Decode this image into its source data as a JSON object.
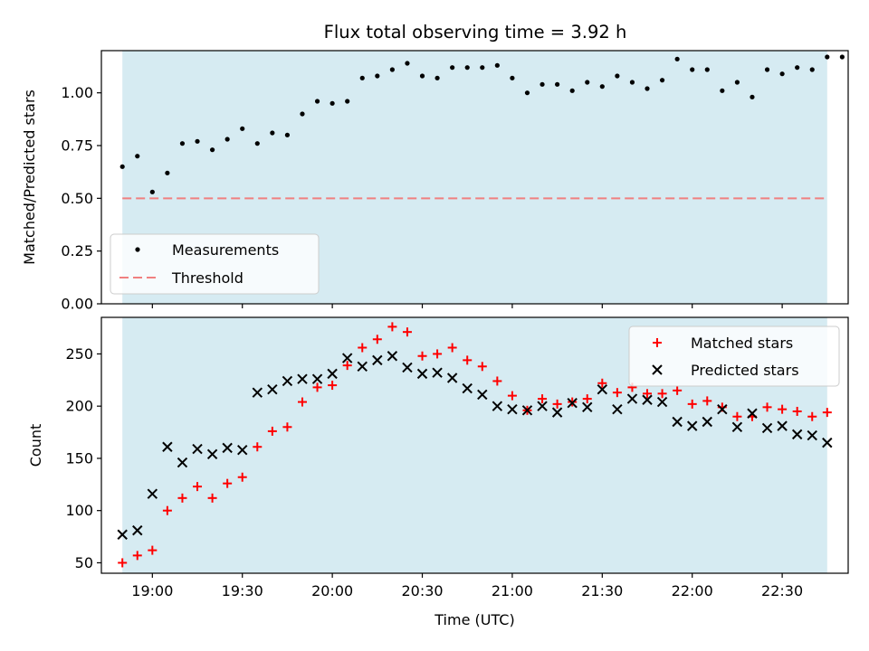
{
  "figure": {
    "title": "Flux total observing time = 3.92 h"
  },
  "colors": {
    "band": "#add8e6",
    "threshold": "#f08080",
    "matched": "#ff0000",
    "predicted": "#000000",
    "measurement": "#000000"
  },
  "chart_data": [
    {
      "type": "scatter",
      "ylabel": "Matched/Predicted stars",
      "xlabel": "",
      "xlim": [
        "18:43",
        "22:52"
      ],
      "ylim": [
        0,
        1.2
      ],
      "yticks": [
        0.0,
        0.25,
        0.5,
        0.75,
        1.0
      ],
      "ytick_labels": [
        "0.00",
        "0.25",
        "0.50",
        "0.75",
        "1.00"
      ],
      "xticks": [
        "19:00",
        "19:30",
        "20:00",
        "20:30",
        "21:00",
        "21:30",
        "22:00",
        "22:30"
      ],
      "show_xtick_labels": false,
      "shaded_interval": [
        "18:50",
        "22:45"
      ],
      "threshold": {
        "name": "Threshold",
        "value": 0.5,
        "x_range": [
          "18:50",
          "22:45"
        ]
      },
      "legend": {
        "placement": "lower-left",
        "entries": [
          "Measurements",
          "Threshold"
        ]
      },
      "series": [
        {
          "name": "Measurements",
          "x": [
            "18:50",
            "18:55",
            "19:00",
            "19:05",
            "19:10",
            "19:15",
            "19:20",
            "19:25",
            "19:30",
            "19:35",
            "19:40",
            "19:45",
            "19:50",
            "19:55",
            "20:00",
            "20:05",
            "20:10",
            "20:15",
            "20:20",
            "20:25",
            "20:30",
            "20:35",
            "20:40",
            "20:45",
            "20:50",
            "20:55",
            "21:00",
            "21:05",
            "21:10",
            "21:15",
            "21:20",
            "21:25",
            "21:30",
            "21:35",
            "21:40",
            "21:45",
            "21:50",
            "21:55",
            "22:00",
            "22:05",
            "22:10",
            "22:15",
            "22:20",
            "22:25",
            "22:30",
            "22:35",
            "22:40",
            "22:45",
            "22:50"
          ],
          "y": [
            0.65,
            0.7,
            0.53,
            0.62,
            0.76,
            0.77,
            0.73,
            0.78,
            0.83,
            0.76,
            0.81,
            0.8,
            0.9,
            0.96,
            0.95,
            0.96,
            1.07,
            1.08,
            1.11,
            1.14,
            1.08,
            1.07,
            1.12,
            1.12,
            1.12,
            1.13,
            1.07,
            1.0,
            1.04,
            1.04,
            1.01,
            1.05,
            1.03,
            1.08,
            1.05,
            1.02,
            1.06,
            1.16,
            1.11,
            1.11,
            1.01,
            1.05,
            0.98,
            1.11,
            1.09,
            1.12,
            1.11,
            1.17,
            1.17
          ]
        }
      ]
    },
    {
      "type": "scatter",
      "ylabel": "Count",
      "xlabel": "Time (UTC)",
      "xlim": [
        "18:43",
        "22:52"
      ],
      "ylim": [
        40,
        285
      ],
      "yticks": [
        50,
        100,
        150,
        200,
        250
      ],
      "ytick_labels": [
        "50",
        "100",
        "150",
        "200",
        "250"
      ],
      "xticks": [
        "19:00",
        "19:30",
        "20:00",
        "20:30",
        "21:00",
        "21:30",
        "22:00",
        "22:30"
      ],
      "show_xtick_labels": true,
      "shaded_interval": [
        "18:50",
        "22:45"
      ],
      "legend": {
        "placement": "top-right",
        "entries": [
          "Matched stars",
          "Predicted stars"
        ]
      },
      "series": [
        {
          "name": "Matched stars",
          "marker": "plus",
          "x": [
            "18:50",
            "18:55",
            "19:00",
            "19:05",
            "19:10",
            "19:15",
            "19:20",
            "19:25",
            "19:30",
            "19:35",
            "19:40",
            "19:45",
            "19:50",
            "19:55",
            "20:00",
            "20:05",
            "20:10",
            "20:15",
            "20:20",
            "20:25",
            "20:30",
            "20:35",
            "20:40",
            "20:45",
            "20:50",
            "20:55",
            "21:00",
            "21:05",
            "21:10",
            "21:15",
            "21:20",
            "21:25",
            "21:30",
            "21:35",
            "21:40",
            "21:45",
            "21:50",
            "21:55",
            "22:00",
            "22:05",
            "22:10",
            "22:15",
            "22:20",
            "22:25",
            "22:30",
            "22:35",
            "22:40",
            "22:45"
          ],
          "y": [
            50,
            57,
            62,
            100,
            112,
            123,
            112,
            126,
            132,
            161,
            176,
            180,
            204,
            218,
            220,
            239,
            256,
            264,
            276,
            271,
            248,
            250,
            256,
            244,
            238,
            224,
            210,
            196,
            207,
            202,
            204,
            207,
            222,
            213,
            218,
            212,
            212,
            215,
            202,
            205,
            199,
            190,
            190,
            199,
            197,
            195,
            190,
            194
          ]
        },
        {
          "name": "Predicted stars",
          "marker": "x",
          "x": [
            "18:50",
            "18:55",
            "19:00",
            "19:05",
            "19:10",
            "19:15",
            "19:20",
            "19:25",
            "19:30",
            "19:35",
            "19:40",
            "19:45",
            "19:50",
            "19:55",
            "20:00",
            "20:05",
            "20:10",
            "20:15",
            "20:20",
            "20:25",
            "20:30",
            "20:35",
            "20:40",
            "20:45",
            "20:50",
            "20:55",
            "21:00",
            "21:05",
            "21:10",
            "21:15",
            "21:20",
            "21:25",
            "21:30",
            "21:35",
            "21:40",
            "21:45",
            "21:50",
            "21:55",
            "22:00",
            "22:05",
            "22:10",
            "22:15",
            "22:20",
            "22:25",
            "22:30",
            "22:35",
            "22:40",
            "22:45"
          ],
          "y": [
            77,
            81,
            116,
            161,
            146,
            159,
            154,
            160,
            158,
            213,
            216,
            224,
            226,
            226,
            231,
            246,
            238,
            244,
            248,
            237,
            231,
            232,
            227,
            217,
            211,
            200,
            197,
            196,
            200,
            194,
            203,
            199,
            216,
            197,
            207,
            206,
            204,
            185,
            181,
            185,
            197,
            180,
            193,
            179,
            181,
            173,
            172,
            165
          ]
        }
      ]
    }
  ]
}
